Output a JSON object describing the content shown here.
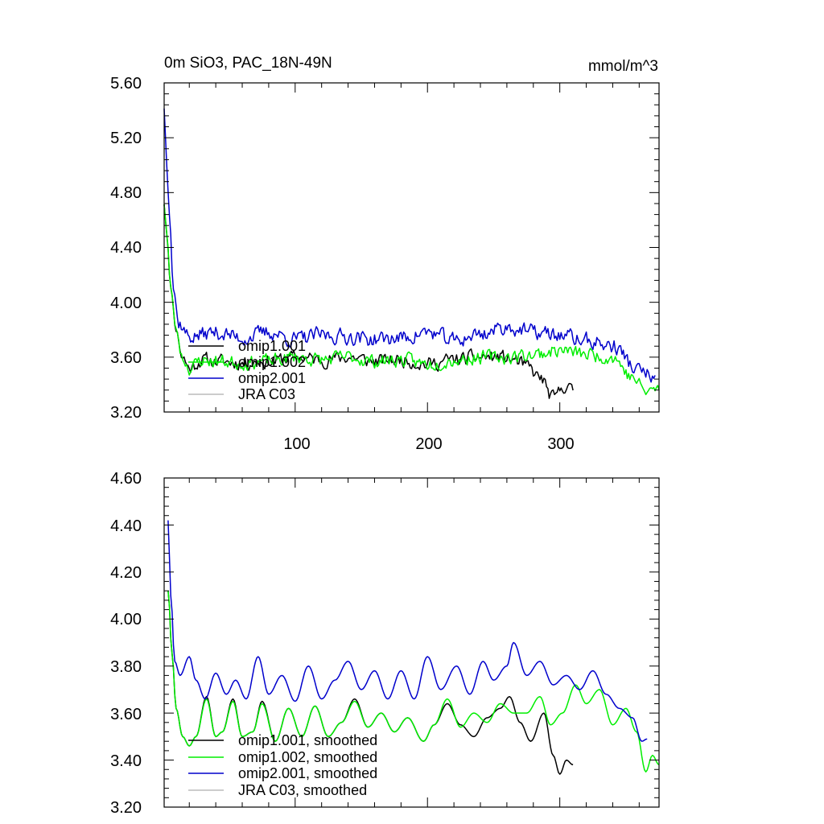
{
  "chart_data": [
    {
      "type": "line",
      "title": "0m SiO3, PAC_18N-49N",
      "units": "mmol/m^3",
      "xlabel": "",
      "ylabel": "",
      "xlim": [
        1,
        375
      ],
      "ylim": [
        3.2,
        5.6
      ],
      "yticks": [
        3.2,
        3.6,
        4.0,
        4.4,
        4.8,
        5.2,
        5.6
      ],
      "ytick_labels": [
        "3.20",
        "3.60",
        "4.00",
        "4.40",
        "4.80",
        "5.20",
        "5.60"
      ],
      "xticks": [
        100,
        200,
        300
      ],
      "xtick_labels": [
        "100",
        "200",
        "300"
      ],
      "legend_position": "lower-left",
      "series": [
        {
          "name": "omip1.001",
          "color": "#000000",
          "start": 1,
          "end": 310,
          "anchors": [
            [
              1,
              4.72
            ],
            [
              3,
              4.5
            ],
            [
              6,
              4.1
            ],
            [
              10,
              3.8
            ],
            [
              15,
              3.6
            ],
            [
              20,
              3.52
            ],
            [
              30,
              3.58
            ],
            [
              40,
              3.57
            ],
            [
              60,
              3.56
            ],
            [
              80,
              3.57
            ],
            [
              100,
              3.6
            ],
            [
              120,
              3.58
            ],
            [
              140,
              3.6
            ],
            [
              160,
              3.57
            ],
            [
              180,
              3.58
            ],
            [
              200,
              3.55
            ],
            [
              220,
              3.58
            ],
            [
              240,
              3.6
            ],
            [
              255,
              3.6
            ],
            [
              265,
              3.58
            ],
            [
              275,
              3.53
            ],
            [
              285,
              3.45
            ],
            [
              295,
              3.3
            ],
            [
              305,
              3.4
            ],
            [
              310,
              3.34
            ]
          ],
          "noise": 0.08,
          "seed": 11
        },
        {
          "name": "omip1.002",
          "color": "#00ee00",
          "start": 1,
          "end": 375,
          "anchors": [
            [
              1,
              4.72
            ],
            [
              3,
              4.5
            ],
            [
              6,
              4.1
            ],
            [
              10,
              3.8
            ],
            [
              15,
              3.6
            ],
            [
              20,
              3.52
            ],
            [
              30,
              3.58
            ],
            [
              40,
              3.57
            ],
            [
              60,
              3.56
            ],
            [
              80,
              3.57
            ],
            [
              100,
              3.6
            ],
            [
              120,
              3.58
            ],
            [
              140,
              3.6
            ],
            [
              160,
              3.57
            ],
            [
              180,
              3.58
            ],
            [
              200,
              3.55
            ],
            [
              220,
              3.58
            ],
            [
              240,
              3.6
            ],
            [
              260,
              3.6
            ],
            [
              280,
              3.62
            ],
            [
              300,
              3.65
            ],
            [
              320,
              3.62
            ],
            [
              340,
              3.6
            ],
            [
              355,
              3.45
            ],
            [
              365,
              3.35
            ],
            [
              375,
              3.37
            ]
          ],
          "noise": 0.08,
          "seed": 23
        },
        {
          "name": "omip2.001",
          "color": "#0000cc",
          "start": 1,
          "end": 372,
          "anchors": [
            [
              1,
              5.42
            ],
            [
              3,
              5.0
            ],
            [
              5,
              4.65
            ],
            [
              8,
              4.1
            ],
            [
              12,
              3.85
            ],
            [
              20,
              3.75
            ],
            [
              40,
              3.78
            ],
            [
              60,
              3.74
            ],
            [
              80,
              3.78
            ],
            [
              100,
              3.73
            ],
            [
              120,
              3.76
            ],
            [
              140,
              3.75
            ],
            [
              160,
              3.73
            ],
            [
              180,
              3.74
            ],
            [
              200,
              3.78
            ],
            [
              220,
              3.72
            ],
            [
              240,
              3.77
            ],
            [
              260,
              3.82
            ],
            [
              280,
              3.78
            ],
            [
              300,
              3.76
            ],
            [
              320,
              3.72
            ],
            [
              340,
              3.68
            ],
            [
              360,
              3.5
            ],
            [
              372,
              3.45
            ]
          ],
          "noise": 0.09,
          "seed": 37
        },
        {
          "name": "JRA C03",
          "color": "#bbbbbb",
          "start": 0,
          "end": 0,
          "anchors": [],
          "noise": 0,
          "seed": 0
        }
      ]
    },
    {
      "type": "line",
      "title": "",
      "xlabel": "",
      "ylabel": "",
      "xlim": [
        1,
        375
      ],
      "ylim": [
        3.2,
        4.6
      ],
      "yticks": [
        3.2,
        3.4,
        3.6,
        3.8,
        4.0,
        4.2,
        4.4,
        4.6
      ],
      "ytick_labels": [
        "3.20",
        "3.40",
        "3.60",
        "3.80",
        "4.00",
        "4.20",
        "4.40",
        "4.60"
      ],
      "xticks": [
        100,
        200,
        300
      ],
      "xtick_labels": [],
      "legend_position": "lower-left",
      "series": [
        {
          "name": "omip1.001, smoothed",
          "color": "#000000",
          "start": 4,
          "end": 310,
          "anchors": [
            [
              4,
              4.12
            ],
            [
              7,
              3.85
            ],
            [
              10,
              3.62
            ],
            [
              15,
              3.5
            ],
            [
              20,
              3.46
            ],
            [
              25,
              3.5
            ],
            [
              33,
              3.67
            ],
            [
              40,
              3.5
            ],
            [
              45,
              3.52
            ],
            [
              53,
              3.66
            ],
            [
              60,
              3.5
            ],
            [
              68,
              3.52
            ],
            [
              75,
              3.65
            ],
            [
              85,
              3.48
            ],
            [
              95,
              3.62
            ],
            [
              105,
              3.5
            ],
            [
              115,
              3.63
            ],
            [
              125,
              3.5
            ],
            [
              135,
              3.56
            ],
            [
              145,
              3.66
            ],
            [
              155,
              3.54
            ],
            [
              165,
              3.6
            ],
            [
              175,
              3.52
            ],
            [
              185,
              3.58
            ],
            [
              197,
              3.48
            ],
            [
              205,
              3.55
            ],
            [
              215,
              3.64
            ],
            [
              225,
              3.55
            ],
            [
              235,
              3.5
            ],
            [
              245,
              3.58
            ],
            [
              255,
              3.62
            ],
            [
              262,
              3.67
            ],
            [
              270,
              3.56
            ],
            [
              278,
              3.48
            ],
            [
              288,
              3.6
            ],
            [
              295,
              3.42
            ],
            [
              300,
              3.34
            ],
            [
              305,
              3.4
            ],
            [
              310,
              3.38
            ]
          ]
        },
        {
          "name": "omip1.002, smoothed",
          "color": "#00ee00",
          "start": 4,
          "end": 375,
          "anchors": [
            [
              4,
              4.12
            ],
            [
              7,
              3.85
            ],
            [
              10,
              3.62
            ],
            [
              15,
              3.5
            ],
            [
              20,
              3.46
            ],
            [
              25,
              3.5
            ],
            [
              33,
              3.66
            ],
            [
              40,
              3.5
            ],
            [
              45,
              3.52
            ],
            [
              53,
              3.65
            ],
            [
              60,
              3.5
            ],
            [
              68,
              3.52
            ],
            [
              75,
              3.64
            ],
            [
              85,
              3.48
            ],
            [
              95,
              3.62
            ],
            [
              105,
              3.5
            ],
            [
              115,
              3.63
            ],
            [
              125,
              3.5
            ],
            [
              135,
              3.56
            ],
            [
              145,
              3.65
            ],
            [
              155,
              3.54
            ],
            [
              165,
              3.6
            ],
            [
              175,
              3.52
            ],
            [
              185,
              3.58
            ],
            [
              197,
              3.48
            ],
            [
              205,
              3.55
            ],
            [
              215,
              3.66
            ],
            [
              225,
              3.54
            ],
            [
              235,
              3.6
            ],
            [
              245,
              3.56
            ],
            [
              255,
              3.64
            ],
            [
              265,
              3.6
            ],
            [
              275,
              3.6
            ],
            [
              285,
              3.67
            ],
            [
              293,
              3.55
            ],
            [
              302,
              3.6
            ],
            [
              312,
              3.72
            ],
            [
              320,
              3.64
            ],
            [
              330,
              3.7
            ],
            [
              340,
              3.55
            ],
            [
              350,
              3.62
            ],
            [
              358,
              3.52
            ],
            [
              365,
              3.35
            ],
            [
              370,
              3.42
            ],
            [
              375,
              3.38
            ]
          ]
        },
        {
          "name": "omip2.001, smoothed",
          "color": "#0000cc",
          "start": 4,
          "end": 366,
          "anchors": [
            [
              4,
              4.42
            ],
            [
              6,
              4.1
            ],
            [
              9,
              3.82
            ],
            [
              13,
              3.76
            ],
            [
              20,
              3.84
            ],
            [
              25,
              3.74
            ],
            [
              32,
              3.66
            ],
            [
              40,
              3.77
            ],
            [
              48,
              3.68
            ],
            [
              55,
              3.74
            ],
            [
              63,
              3.66
            ],
            [
              72,
              3.84
            ],
            [
              80,
              3.68
            ],
            [
              90,
              3.76
            ],
            [
              100,
              3.65
            ],
            [
              110,
              3.8
            ],
            [
              120,
              3.66
            ],
            [
              130,
              3.74
            ],
            [
              140,
              3.82
            ],
            [
              150,
              3.7
            ],
            [
              160,
              3.78
            ],
            [
              170,
              3.66
            ],
            [
              180,
              3.78
            ],
            [
              190,
              3.66
            ],
            [
              200,
              3.84
            ],
            [
              210,
              3.7
            ],
            [
              222,
              3.8
            ],
            [
              232,
              3.68
            ],
            [
              242,
              3.82
            ],
            [
              250,
              3.74
            ],
            [
              260,
              3.8
            ],
            [
              265,
              3.9
            ],
            [
              275,
              3.76
            ],
            [
              285,
              3.82
            ],
            [
              295,
              3.72
            ],
            [
              305,
              3.76
            ],
            [
              315,
              3.7
            ],
            [
              325,
              3.78
            ],
            [
              335,
              3.68
            ],
            [
              345,
              3.62
            ],
            [
              355,
              3.58
            ],
            [
              362,
              3.48
            ],
            [
              366,
              3.49
            ]
          ]
        },
        {
          "name": "JRA C03, smoothed",
          "color": "#bbbbbb",
          "start": 0,
          "end": 0,
          "anchors": []
        }
      ]
    }
  ]
}
